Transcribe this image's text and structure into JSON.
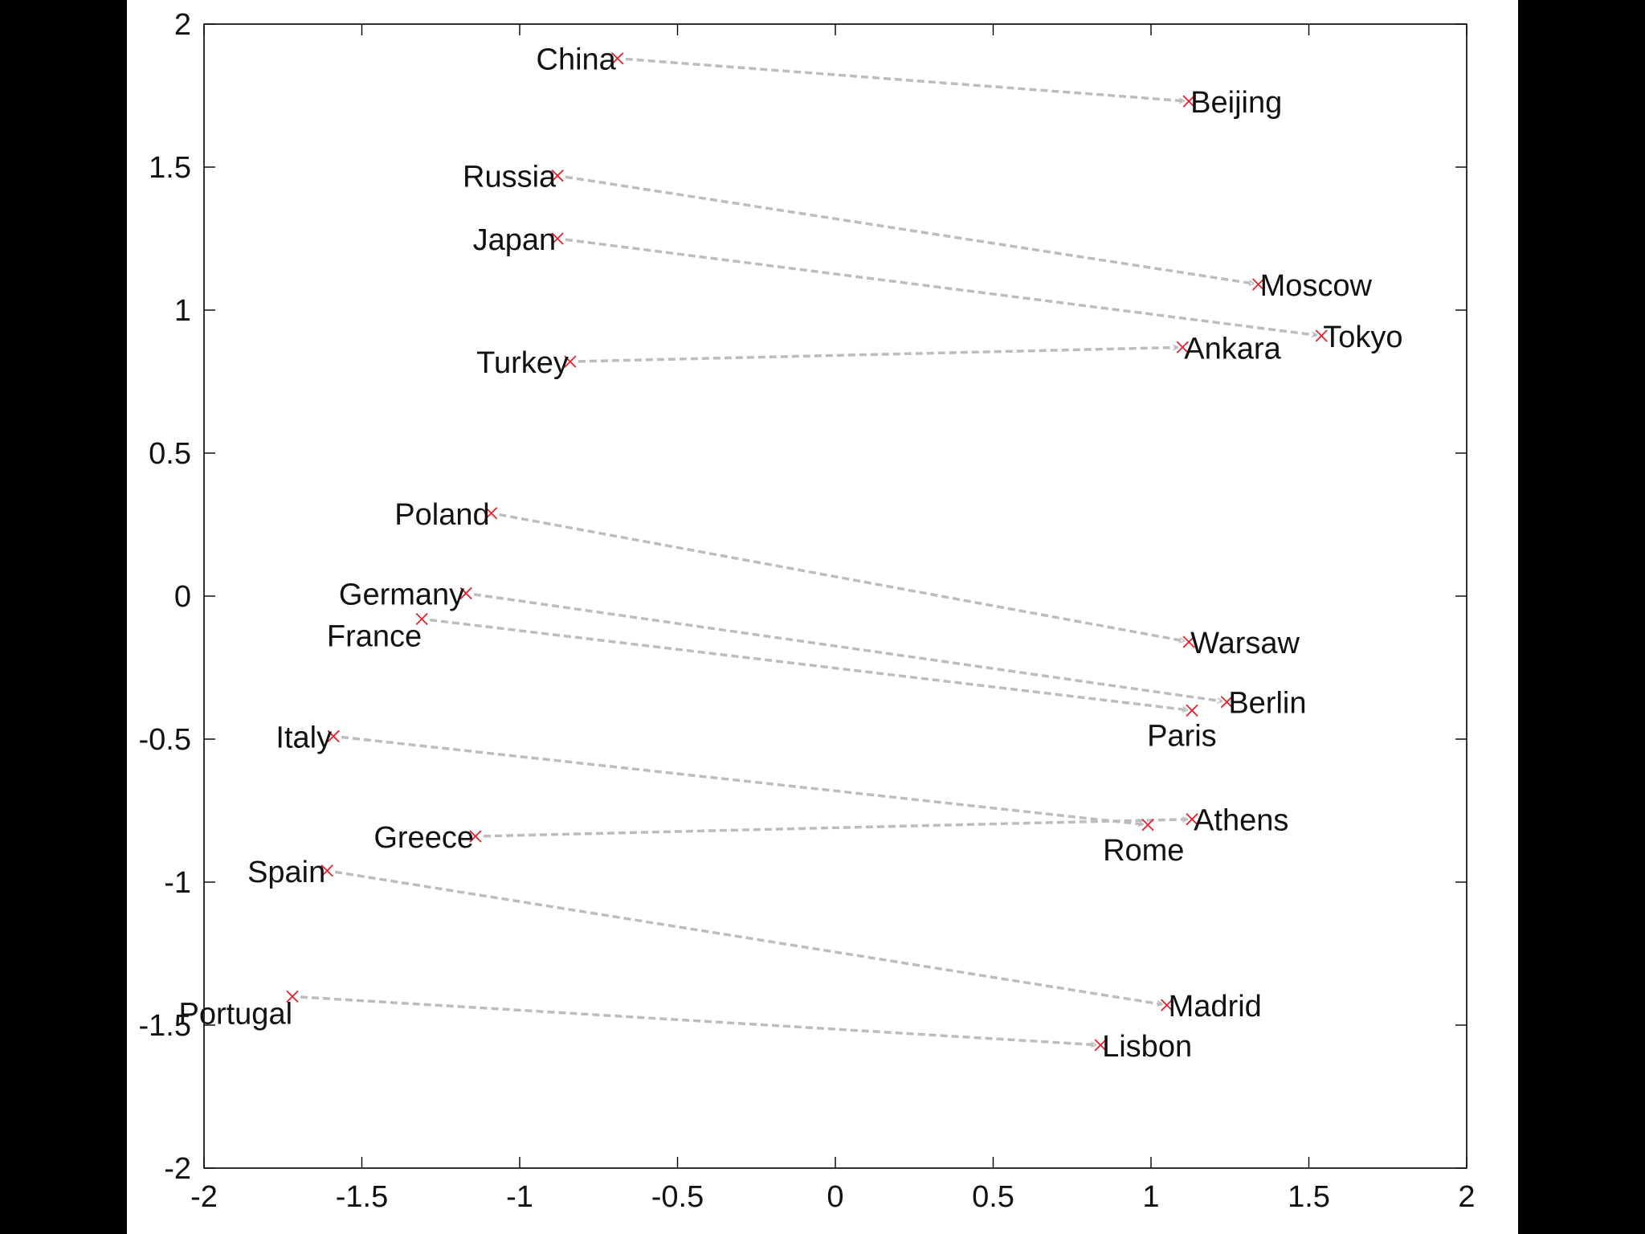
{
  "chart_data": {
    "type": "scatter",
    "title": "",
    "xlabel": "",
    "ylabel": "",
    "xlim": [
      -2,
      2
    ],
    "ylim": [
      -2,
      2
    ],
    "x_ticks": [
      -2,
      -1.5,
      -1,
      -0.5,
      0,
      0.5,
      1,
      1.5,
      2
    ],
    "y_ticks": [
      -2,
      -1.5,
      -1,
      -0.5,
      0,
      0.5,
      1,
      1.5,
      2
    ],
    "x_tick_labels": [
      "-2",
      "-1.5",
      "-1",
      "-0.5",
      "0",
      "0.5",
      "1",
      "1.5",
      "2"
    ],
    "y_tick_labels": [
      "-2",
      "-1.5",
      "-1",
      "-0.5",
      "0",
      "0.5",
      "1",
      "1.5",
      "2"
    ],
    "grid": false,
    "legend": "none",
    "marker": "x",
    "colors": {
      "marker": "#e8202a",
      "arrow": "#bdbdbd",
      "axis": "#000000",
      "text": "#111111"
    },
    "points": [
      {
        "label": "China",
        "x": -0.69,
        "y": 1.88,
        "label_pos": "left"
      },
      {
        "label": "Beijing",
        "x": 1.12,
        "y": 1.73,
        "label_pos": "right"
      },
      {
        "label": "Russia",
        "x": -0.88,
        "y": 1.47,
        "label_pos": "left"
      },
      {
        "label": "Moscow",
        "x": 1.34,
        "y": 1.09,
        "label_pos": "right"
      },
      {
        "label": "Japan",
        "x": -0.88,
        "y": 1.25,
        "label_pos": "left"
      },
      {
        "label": "Tokyo",
        "x": 1.54,
        "y": 0.91,
        "label_pos": "right"
      },
      {
        "label": "Turkey",
        "x": -0.84,
        "y": 0.82,
        "label_pos": "left"
      },
      {
        "label": "Ankara",
        "x": 1.1,
        "y": 0.87,
        "label_pos": "right"
      },
      {
        "label": "Poland",
        "x": -1.09,
        "y": 0.29,
        "label_pos": "left"
      },
      {
        "label": "Warsaw",
        "x": 1.12,
        "y": -0.16,
        "label_pos": "right"
      },
      {
        "label": "Germany",
        "x": -1.17,
        "y": 0.01,
        "label_pos": "left"
      },
      {
        "label": "Berlin",
        "x": 1.24,
        "y": -0.37,
        "label_pos": "right"
      },
      {
        "label": "France",
        "x": -1.31,
        "y": -0.08,
        "label_pos": "below-left"
      },
      {
        "label": "Paris",
        "x": 1.13,
        "y": -0.4,
        "label_pos": "below-right"
      },
      {
        "label": "Italy",
        "x": -1.59,
        "y": -0.49,
        "label_pos": "left"
      },
      {
        "label": "Rome",
        "x": 0.99,
        "y": -0.8,
        "label_pos": "below-right"
      },
      {
        "label": "Greece",
        "x": -1.14,
        "y": -0.84,
        "label_pos": "left"
      },
      {
        "label": "Athens",
        "x": 1.13,
        "y": -0.78,
        "label_pos": "right"
      },
      {
        "label": "Spain",
        "x": -1.61,
        "y": -0.96,
        "label_pos": "left"
      },
      {
        "label": "Madrid",
        "x": 1.05,
        "y": -1.43,
        "label_pos": "right"
      },
      {
        "label": "Portugal",
        "x": -1.72,
        "y": -1.4,
        "label_pos": "below-left"
      },
      {
        "label": "Lisbon",
        "x": 0.84,
        "y": -1.57,
        "label_pos": "right"
      }
    ],
    "arrows": [
      {
        "from": "China",
        "to": "Beijing"
      },
      {
        "from": "Russia",
        "to": "Moscow"
      },
      {
        "from": "Japan",
        "to": "Tokyo"
      },
      {
        "from": "Turkey",
        "to": "Ankara"
      },
      {
        "from": "Poland",
        "to": "Warsaw"
      },
      {
        "from": "Germany",
        "to": "Berlin"
      },
      {
        "from": "France",
        "to": "Paris"
      },
      {
        "from": "Italy",
        "to": "Rome"
      },
      {
        "from": "Greece",
        "to": "Athens"
      },
      {
        "from": "Spain",
        "to": "Madrid"
      },
      {
        "from": "Portugal",
        "to": "Lisbon"
      }
    ]
  }
}
